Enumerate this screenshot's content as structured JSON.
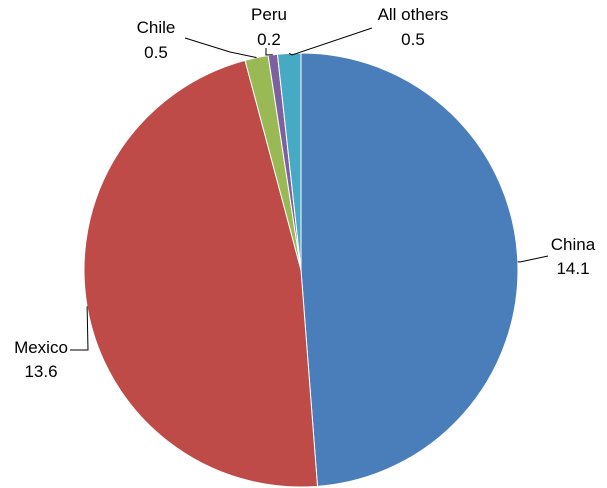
{
  "chart_data": {
    "type": "pie",
    "categories": [
      "China",
      "Mexico",
      "Chile",
      "Peru",
      "All others"
    ],
    "values": [
      14.1,
      13.6,
      0.5,
      0.2,
      0.5
    ],
    "value_labels": [
      "14.1",
      "13.6",
      "0.5",
      "0.2",
      "0.5"
    ],
    "colors": [
      "#4a7ebb",
      "#be4b48",
      "#98b954",
      "#7d60a0",
      "#46aac5"
    ],
    "start_angle": "12 o'clock",
    "direction": "clockwise",
    "legend": "none",
    "labels": "outside with leader lines"
  }
}
